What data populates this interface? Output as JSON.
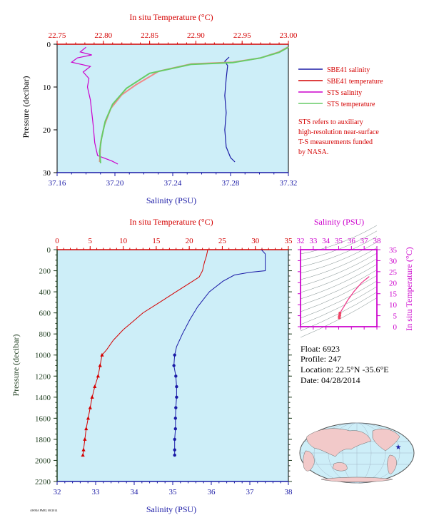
{
  "colors": {
    "plot_bg": "#cdeef8",
    "salinity": "#1a1aa6",
    "temperature": "#d40000",
    "sts_salinity": "#cc00cc",
    "sts_temperature": "#66cc66",
    "tick_dark": "#1f3d1f"
  },
  "chart_data": [
    {
      "type": "line",
      "top_axis_label": "In situ Temperature (°C)",
      "top_ticks": [
        "22.75",
        "22.80",
        "22.85",
        "22.90",
        "22.95",
        "23.00"
      ],
      "top_range": [
        22.75,
        23.0
      ],
      "xlabel": "Salinity (PSU)",
      "x_ticks": [
        "37.16",
        "37.20",
        "37.24",
        "37.28",
        "37.32"
      ],
      "x_range": [
        37.16,
        37.32
      ],
      "ylabel": "Pressure (decibar)",
      "y_ticks": [
        "0",
        "10",
        "20",
        "30"
      ],
      "y_range": [
        0,
        30
      ],
      "legend": [
        "SBE41 salinity",
        "SBE41 temperature",
        "STS salinity",
        "STS temperature"
      ],
      "note": [
        "STS refers to auxiliary",
        "high-resolution near-surface",
        "T-S measurements funded",
        "by NASA."
      ],
      "series": [
        {
          "name": "SBE41 salinity",
          "axis": "salinity",
          "points": [
            [
              37.279,
              3
            ],
            [
              37.276,
              4
            ],
            [
              37.278,
              5
            ],
            [
              37.277,
              8
            ],
            [
              37.276,
              12
            ],
            [
              37.277,
              16
            ],
            [
              37.276,
              20
            ],
            [
              37.277,
              24
            ],
            [
              37.28,
              26.5
            ],
            [
              37.283,
              27.5
            ]
          ]
        },
        {
          "name": "SBE41 temperature",
          "axis": "temperature",
          "points": [
            [
              23.0,
              0.6
            ],
            [
              22.99,
              1.8
            ],
            [
              22.97,
              3.2
            ],
            [
              22.94,
              4.2
            ],
            [
              22.895,
              4.6
            ],
            [
              22.86,
              6.3
            ],
            [
              22.835,
              9.5
            ],
            [
              22.82,
              11.8
            ],
            [
              22.808,
              15
            ],
            [
              22.801,
              19
            ],
            [
              22.797,
              23
            ],
            [
              22.796,
              27.5
            ]
          ]
        },
        {
          "name": "STS salinity",
          "axis": "salinity",
          "points": [
            [
              37.18,
              0.7
            ],
            [
              37.176,
              1.8
            ],
            [
              37.184,
              2.5
            ],
            [
              37.174,
              3.2
            ],
            [
              37.17,
              4.2
            ],
            [
              37.183,
              5.2
            ],
            [
              37.178,
              6.5
            ],
            [
              37.182,
              8
            ],
            [
              37.181,
              10
            ],
            [
              37.183,
              13
            ],
            [
              37.184,
              16
            ],
            [
              37.185,
              19
            ],
            [
              37.186,
              23
            ],
            [
              37.188,
              26
            ],
            [
              37.198,
              27.3
            ],
            [
              37.202,
              28
            ]
          ]
        },
        {
          "name": "STS temperature",
          "axis": "temperature",
          "points": [
            [
              23.0,
              0.7
            ],
            [
              22.99,
              1.9
            ],
            [
              22.97,
              3.2
            ],
            [
              22.94,
              4.3
            ],
            [
              22.895,
              4.7
            ],
            [
              22.85,
              6.8
            ],
            [
              22.825,
              10.3
            ],
            [
              22.81,
              14
            ],
            [
              22.802,
              18
            ],
            [
              22.798,
              22
            ],
            [
              22.796,
              25
            ],
            [
              22.797,
              27.8
            ]
          ]
        }
      ]
    },
    {
      "type": "line",
      "top_axis_label": "In situ Temperature (°C)",
      "top_ticks": [
        "0",
        "5",
        "10",
        "15",
        "20",
        "25",
        "30",
        "35"
      ],
      "top_range": [
        0,
        35
      ],
      "xlabel": "Salinity (PSU)",
      "x_ticks": [
        "32",
        "33",
        "34",
        "35",
        "36",
        "37",
        "38"
      ],
      "x_range": [
        32,
        38
      ],
      "ylabel": "Pressure (decibar)",
      "y_ticks": [
        "0",
        "200",
        "400",
        "600",
        "800",
        "1000",
        "1200",
        "1400",
        "1600",
        "1800",
        "2000",
        "2200"
      ],
      "y_range": [
        0,
        2200
      ],
      "series": [
        {
          "name": "",
          "axis": "salinity",
          "markers": "circle",
          "points": [
            [
              37.3,
              0
            ],
            [
              37.4,
              40
            ],
            [
              37.4,
              120
            ],
            [
              37.4,
              200
            ],
            [
              37.0,
              215
            ],
            [
              36.6,
              240
            ],
            [
              36.3,
              300
            ],
            [
              35.95,
              400
            ],
            [
              35.65,
              540
            ],
            [
              35.45,
              660
            ],
            [
              35.25,
              800
            ],
            [
              35.1,
              920
            ],
            [
              35.05,
              1000
            ],
            [
              35.03,
              1100
            ],
            [
              35.08,
              1200
            ],
            [
              35.1,
              1300
            ],
            [
              35.1,
              1400
            ],
            [
              35.08,
              1500
            ],
            [
              35.07,
              1600
            ],
            [
              35.07,
              1700
            ],
            [
              35.05,
              1800
            ],
            [
              35.05,
              1900
            ],
            [
              35.05,
              1950
            ]
          ],
          "marker_from": 1000
        },
        {
          "name": "",
          "axis": "temperature",
          "markers": "triangle",
          "points": [
            [
              22.8,
              0
            ],
            [
              22.6,
              60
            ],
            [
              22.3,
              120
            ],
            [
              22.0,
              200
            ],
            [
              21.5,
              260
            ],
            [
              20.0,
              320
            ],
            [
              18.0,
              400
            ],
            [
              15.5,
              500
            ],
            [
              13.0,
              600
            ],
            [
              11.5,
              680
            ],
            [
              10.0,
              760
            ],
            [
              8.5,
              860
            ],
            [
              7.5,
              950
            ],
            [
              6.8,
              1000
            ],
            [
              6.5,
              1100
            ],
            [
              6.2,
              1200
            ],
            [
              5.7,
              1300
            ],
            [
              5.3,
              1400
            ],
            [
              5.0,
              1500
            ],
            [
              4.7,
              1600
            ],
            [
              4.4,
              1700
            ],
            [
              4.2,
              1800
            ],
            [
              4.0,
              1900
            ],
            [
              3.9,
              1950
            ]
          ],
          "marker_from": 1000
        }
      ]
    },
    {
      "type": "scatter",
      "top_axis_label": "Salinity (PSU)",
      "x_ticks": [
        "32",
        "33",
        "34",
        "35",
        "36",
        "37",
        "38"
      ],
      "x_range": [
        32,
        38
      ],
      "right_axis_label": "In situ Temperature (°C)",
      "y_ticks": [
        "0",
        "5",
        "10",
        "15",
        "20",
        "25",
        "30",
        "35"
      ],
      "y_range": [
        0,
        35
      ],
      "points": [
        [
          37.4,
          22.8
        ],
        [
          36.8,
          20
        ],
        [
          36.2,
          16
        ],
        [
          35.7,
          12
        ],
        [
          35.4,
          9
        ],
        [
          35.2,
          7.2
        ],
        [
          35.1,
          6.2
        ],
        [
          35.08,
          5.2
        ],
        [
          35.05,
          4.6
        ],
        [
          35.05,
          4.0
        ]
      ]
    }
  ],
  "float_info": {
    "float": "Float:  6923",
    "profile": "Profile:  247",
    "location": "Location:  22.5°N  -35.6°E",
    "date": "Date:  04/28/2014"
  },
  "footer_text": "AWMA PMEL 08/2014"
}
